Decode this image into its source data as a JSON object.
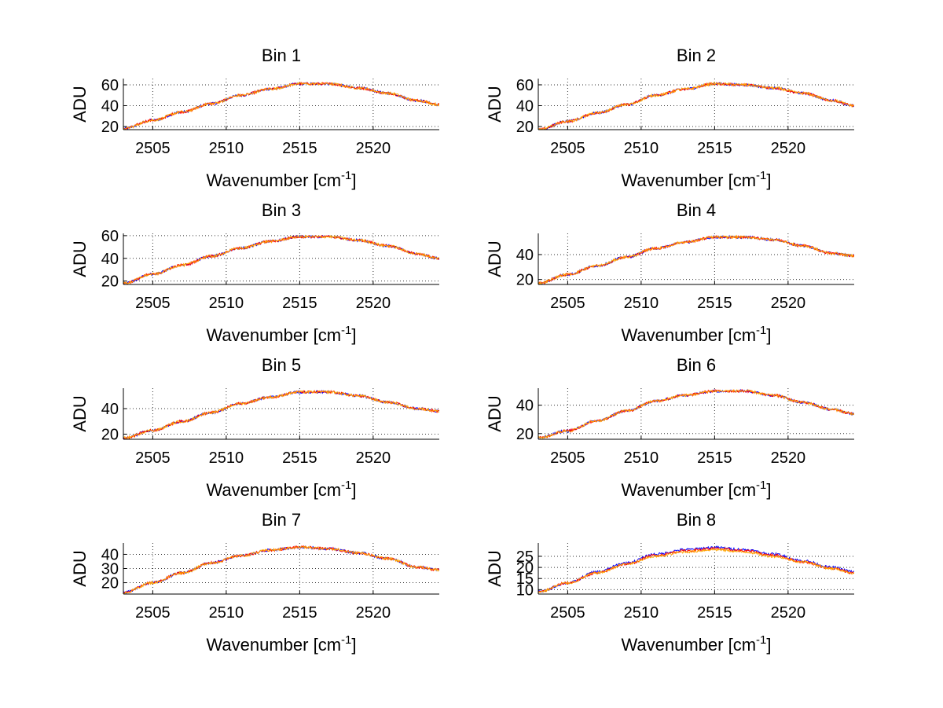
{
  "chart_data": [
    {
      "type": "line",
      "title": "Bin 1",
      "xlabel_main": "Wavenumber [cm",
      "xlabel_sup": "-1",
      "xlabel_close": "]",
      "ylabel": "ADU",
      "xlim": [
        2503,
        2524.5
      ],
      "ylim": [
        17,
        66
      ],
      "xticks": [
        2505,
        2510,
        2515,
        2520
      ],
      "yticks": [
        20,
        40,
        60
      ],
      "x": [
        2503,
        2505,
        2507,
        2509,
        2511,
        2513,
        2515,
        2517,
        2519,
        2521,
        2523,
        2524.5
      ],
      "series": [
        {
          "color": "#0000ff",
          "values": [
            18,
            26,
            34,
            42,
            50,
            56,
            61,
            61,
            57,
            52,
            45,
            41
          ]
        },
        {
          "color": "#ff0000",
          "values": [
            18,
            26,
            34,
            42,
            50,
            56,
            61,
            61,
            57,
            52,
            45,
            41
          ]
        },
        {
          "color": "#ffa500",
          "values": [
            18,
            26,
            34,
            42,
            50,
            56,
            61,
            61,
            57,
            52,
            45,
            41
          ]
        }
      ]
    },
    {
      "type": "line",
      "title": "Bin 2",
      "xlabel_main": "Wavenumber [cm",
      "xlabel_sup": "-1",
      "xlabel_close": "]",
      "ylabel": "ADU",
      "xlim": [
        2503,
        2524.5
      ],
      "ylim": [
        17,
        66
      ],
      "xticks": [
        2505,
        2510,
        2515,
        2520
      ],
      "yticks": [
        20,
        40,
        60
      ],
      "x": [
        2503,
        2505,
        2507,
        2509,
        2511,
        2513,
        2515,
        2517,
        2519,
        2521,
        2523,
        2524.5
      ],
      "series": [
        {
          "color": "#0000ff",
          "values": [
            17,
            25,
            33,
            41,
            50,
            56,
            61,
            60,
            57,
            52,
            45,
            40
          ]
        },
        {
          "color": "#ff0000",
          "values": [
            17,
            25,
            33,
            41,
            50,
            56,
            61,
            60,
            57,
            52,
            45,
            40
          ]
        },
        {
          "color": "#ffa500",
          "values": [
            17,
            25,
            33,
            41,
            50,
            56,
            61,
            60,
            57,
            52,
            45,
            40
          ]
        }
      ]
    },
    {
      "type": "line",
      "title": "Bin 3",
      "xlabel_main": "Wavenumber [cm",
      "xlabel_sup": "-1",
      "xlabel_close": "]",
      "ylabel": "ADU",
      "xlim": [
        2503,
        2524.5
      ],
      "ylim": [
        17,
        62
      ],
      "xticks": [
        2505,
        2510,
        2515,
        2520
      ],
      "yticks": [
        20,
        40,
        60
      ],
      "x": [
        2503,
        2505,
        2507,
        2509,
        2511,
        2513,
        2515,
        2517,
        2519,
        2521,
        2523,
        2524.5
      ],
      "series": [
        {
          "color": "#0000ff",
          "values": [
            18,
            26,
            34,
            42,
            49,
            55,
            59,
            59,
            56,
            51,
            44,
            40
          ]
        },
        {
          "color": "#ff0000",
          "values": [
            18,
            26,
            34,
            42,
            49,
            55,
            59,
            59,
            56,
            51,
            44,
            40
          ]
        },
        {
          "color": "#ffa500",
          "values": [
            18,
            26,
            34,
            42,
            49,
            55,
            59,
            59,
            56,
            51,
            44,
            40
          ]
        }
      ]
    },
    {
      "type": "line",
      "title": "Bin 4",
      "xlabel_main": "Wavenumber [cm",
      "xlabel_sup": "-1",
      "xlabel_close": "]",
      "ylabel": "ADU",
      "xlim": [
        2503,
        2524.5
      ],
      "ylim": [
        16,
        57
      ],
      "xticks": [
        2505,
        2510,
        2515,
        2520
      ],
      "yticks": [
        20,
        40
      ],
      "x": [
        2503,
        2505,
        2507,
        2509,
        2511,
        2513,
        2515,
        2517,
        2519,
        2521,
        2523,
        2524.5
      ],
      "series": [
        {
          "color": "#0000ff",
          "values": [
            17,
            24,
            31,
            38,
            45,
            50,
            54,
            54,
            52,
            47,
            41,
            39
          ]
        },
        {
          "color": "#ff0000",
          "values": [
            17,
            24,
            31,
            38,
            45,
            50,
            54,
            54,
            52,
            47,
            41,
            39
          ]
        },
        {
          "color": "#ffa500",
          "values": [
            17,
            24,
            31,
            38,
            45,
            50,
            54,
            54,
            52,
            47,
            41,
            39
          ]
        }
      ]
    },
    {
      "type": "line",
      "title": "Bin 5",
      "xlabel_main": "Wavenumber [cm",
      "xlabel_sup": "-1",
      "xlabel_close": "]",
      "ylabel": "ADU",
      "xlim": [
        2503,
        2524.5
      ],
      "ylim": [
        16,
        56
      ],
      "xticks": [
        2505,
        2510,
        2515,
        2520
      ],
      "yticks": [
        20,
        40
      ],
      "x": [
        2503,
        2505,
        2507,
        2509,
        2511,
        2513,
        2515,
        2517,
        2519,
        2521,
        2523,
        2524.5
      ],
      "series": [
        {
          "color": "#0000ff",
          "values": [
            17,
            23,
            30,
            37,
            44,
            49,
            53,
            53,
            50,
            45,
            40,
            38
          ]
        },
        {
          "color": "#ff0000",
          "values": [
            17,
            23,
            30,
            37,
            44,
            49,
            53,
            53,
            50,
            45,
            40,
            38
          ]
        },
        {
          "color": "#ffa500",
          "values": [
            17,
            23,
            30,
            37,
            44,
            49,
            53,
            53,
            50,
            45,
            40,
            38
          ]
        }
      ]
    },
    {
      "type": "line",
      "title": "Bin 6",
      "xlabel_main": "Wavenumber [cm",
      "xlabel_sup": "-1",
      "xlabel_close": "]",
      "ylabel": "ADU",
      "xlim": [
        2503,
        2524.5
      ],
      "ylim": [
        16,
        52
      ],
      "xticks": [
        2505,
        2510,
        2515,
        2520
      ],
      "yticks": [
        20,
        40
      ],
      "x": [
        2503,
        2505,
        2507,
        2509,
        2511,
        2513,
        2515,
        2517,
        2519,
        2521,
        2523,
        2524.5
      ],
      "series": [
        {
          "color": "#0000ff",
          "values": [
            17,
            22,
            29,
            36,
            43,
            47,
            50,
            50,
            47,
            42,
            37,
            34
          ]
        },
        {
          "color": "#ff0000",
          "values": [
            17,
            22,
            29,
            36,
            43,
            47,
            50,
            50,
            47,
            42,
            37,
            34
          ]
        },
        {
          "color": "#ffa500",
          "values": [
            17,
            22,
            29,
            36,
            43,
            47,
            50,
            50,
            47,
            42,
            37,
            34
          ]
        }
      ]
    },
    {
      "type": "line",
      "title": "Bin 7",
      "xlabel_main": "Wavenumber [cm",
      "xlabel_sup": "-1",
      "xlabel_close": "]",
      "ylabel": "ADU",
      "xlim": [
        2503,
        2524.5
      ],
      "ylim": [
        12,
        48
      ],
      "xticks": [
        2505,
        2510,
        2515,
        2520
      ],
      "yticks": [
        20,
        30,
        40
      ],
      "x": [
        2503,
        2505,
        2507,
        2509,
        2511,
        2513,
        2515,
        2517,
        2519,
        2521,
        2523,
        2524.5
      ],
      "series": [
        {
          "color": "#0000ff",
          "values": [
            13,
            20,
            27,
            34,
            39,
            43,
            45,
            44,
            41,
            37,
            31,
            29
          ]
        },
        {
          "color": "#ff0000",
          "values": [
            13,
            20,
            27,
            34,
            39,
            43,
            45,
            44,
            41,
            37,
            31,
            29
          ]
        },
        {
          "color": "#ffa500",
          "values": [
            13,
            20,
            27,
            34,
            39,
            43,
            45,
            44,
            41,
            37,
            31,
            29
          ]
        }
      ]
    },
    {
      "type": "line",
      "title": "Bin 8",
      "xlabel_main": "Wavenumber [cm",
      "xlabel_sup": "-1",
      "xlabel_close": "]",
      "ylabel": "ADU",
      "xlim": [
        2503,
        2524.5
      ],
      "ylim": [
        8,
        31
      ],
      "xticks": [
        2505,
        2510,
        2515,
        2520
      ],
      "yticks": [
        10,
        15,
        20,
        25
      ],
      "x": [
        2503,
        2505,
        2507,
        2509,
        2511,
        2513,
        2515,
        2517,
        2519,
        2521,
        2523,
        2524.5
      ],
      "series": [
        {
          "color": "#0000ff",
          "values": [
            9,
            13,
            18,
            22,
            26,
            28,
            29,
            28,
            26,
            23,
            20,
            18
          ]
        },
        {
          "color": "#ff0000",
          "values": [
            9,
            13,
            17.5,
            21.5,
            25.5,
            27.5,
            28.5,
            27.5,
            25.5,
            22.5,
            19.5,
            17.5
          ]
        },
        {
          "color": "#ffa500",
          "values": [
            9,
            13,
            17.5,
            21.5,
            25,
            27,
            28,
            27,
            25,
            22.5,
            19.5,
            17.5
          ]
        }
      ]
    }
  ]
}
